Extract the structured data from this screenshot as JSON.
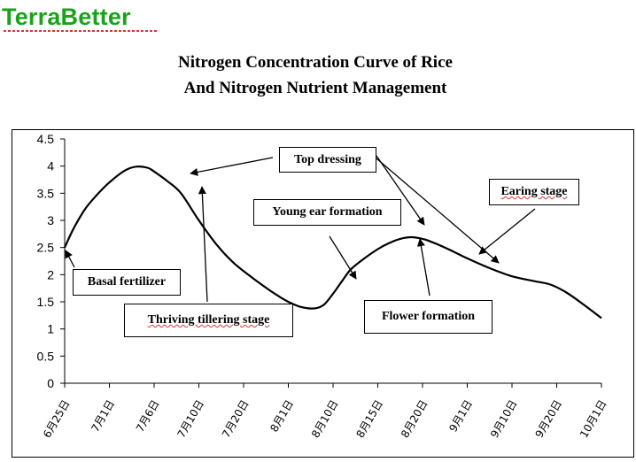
{
  "brand": {
    "name": "TerraBetter",
    "color": "#1aa31a"
  },
  "chart_data": {
    "type": "line",
    "title_line1": "Nitrogen Concentration Curve of Rice",
    "title_line2": "And Nitrogen Nutrient Management",
    "xlabel": "",
    "ylabel": "",
    "ylim": [
      0,
      4.5
    ],
    "yticks": [
      "4.5",
      "4",
      "3.5",
      "3",
      "2.5",
      "2",
      "1.5",
      "1",
      "0.5",
      "0"
    ],
    "categories": [
      "6月25日",
      "7月1日",
      "7月6日",
      "7月10日",
      "7月20日",
      "8月1日",
      "8月10日",
      "8月15日",
      "8月20日",
      "9月1日",
      "9月10日",
      "9月20日",
      "10月1日"
    ],
    "x": [
      0,
      0.2,
      0.45,
      0.7,
      1.0,
      1.35,
      1.6,
      1.85,
      2.0,
      2.3,
      2.6,
      3.0,
      3.4,
      3.8,
      4.3,
      4.75,
      5.0,
      5.3,
      5.6,
      5.8,
      6.0,
      6.2,
      6.4,
      6.7,
      7.0,
      7.25,
      7.5,
      7.75,
      8.0,
      8.15,
      8.5,
      9.0,
      9.5,
      10.0,
      10.5,
      10.85,
      11.2,
      11.6,
      12.0
    ],
    "series": [
      {
        "values": [
          2.5,
          2.85,
          3.2,
          3.45,
          3.7,
          3.92,
          3.99,
          3.97,
          3.9,
          3.72,
          3.5,
          3.0,
          2.55,
          2.2,
          1.88,
          1.62,
          1.5,
          1.4,
          1.38,
          1.45,
          1.65,
          1.88,
          2.1,
          2.3,
          2.47,
          2.58,
          2.66,
          2.69,
          2.66,
          2.62,
          2.5,
          2.3,
          2.12,
          1.97,
          1.88,
          1.82,
          1.68,
          1.45,
          1.2
        ]
      }
    ],
    "line_color": "#000000",
    "grid": false,
    "annotations": [
      {
        "text": "Top dressing",
        "squiggle": false
      },
      {
        "text": "Earing stage",
        "squiggle": true
      },
      {
        "text": "Young ear formation",
        "squiggle": false
      },
      {
        "text": "Basal fertilizer",
        "squiggle": false
      },
      {
        "text": "Thriving tillering stage",
        "squiggle": true
      },
      {
        "text": "Flower formation",
        "squiggle": false
      }
    ]
  }
}
